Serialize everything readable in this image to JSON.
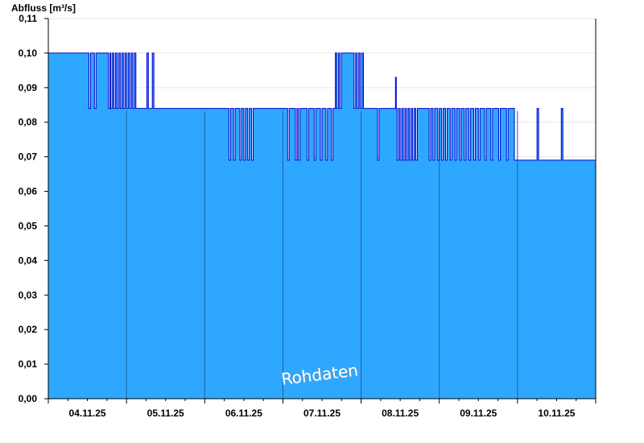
{
  "chart_data": {
    "type": "area",
    "title": "",
    "ylabel": "Abfluss [m³/s]",
    "xlabel": "",
    "ylim": [
      0,
      0.11
    ],
    "y_ticks": [
      "0,00",
      "0,01",
      "0,02",
      "0,03",
      "0,04",
      "0,05",
      "0,06",
      "0,07",
      "0,08",
      "0,09",
      "0,10",
      "0,11"
    ],
    "x_tick_labels": [
      "04.11.25",
      "05.11.25",
      "06.11.25",
      "07.11.25",
      "08.11.25",
      "09.11.25",
      "10.11.25"
    ],
    "x_range_days": [
      0,
      7
    ],
    "watermark": "Rohdaten",
    "grid": true,
    "colors": {
      "fill": "#2ea8ff",
      "line": "#0000cc",
      "day_lines": "#1f5fa0",
      "grid": "#e6e6e6"
    },
    "series": [
      {
        "points": [
          [
            0.0,
            0.1
          ],
          [
            0.52,
            0.1
          ],
          [
            0.52,
            0.084
          ],
          [
            0.54,
            0.1
          ],
          [
            0.58,
            0.1
          ],
          [
            0.59,
            0.084
          ],
          [
            0.61,
            0.1
          ],
          [
            0.76,
            0.1
          ],
          [
            0.77,
            0.084
          ],
          [
            0.79,
            0.1
          ],
          [
            0.8,
            0.084
          ],
          [
            0.82,
            0.1
          ],
          [
            0.84,
            0.084
          ],
          [
            0.86,
            0.1
          ],
          [
            0.88,
            0.084
          ],
          [
            0.9,
            0.1
          ],
          [
            0.92,
            0.084
          ],
          [
            0.94,
            0.1
          ],
          [
            0.96,
            0.084
          ],
          [
            0.98,
            0.1
          ],
          [
            1.0,
            0.084
          ],
          [
            1.02,
            0.1
          ],
          [
            1.04,
            0.084
          ],
          [
            1.06,
            0.1
          ],
          [
            1.08,
            0.084
          ],
          [
            1.1,
            0.1
          ],
          [
            1.12,
            0.084
          ],
          [
            1.25,
            0.084
          ],
          [
            1.26,
            0.1
          ],
          [
            1.28,
            0.084
          ],
          [
            1.32,
            0.084
          ],
          [
            1.33,
            0.1
          ],
          [
            1.35,
            0.084
          ],
          [
            2.3,
            0.084
          ],
          [
            2.31,
            0.069
          ],
          [
            2.33,
            0.084
          ],
          [
            2.36,
            0.084
          ],
          [
            2.37,
            0.069
          ],
          [
            2.39,
            0.084
          ],
          [
            2.44,
            0.084
          ],
          [
            2.45,
            0.069
          ],
          [
            2.47,
            0.084
          ],
          [
            2.5,
            0.069
          ],
          [
            2.52,
            0.084
          ],
          [
            2.55,
            0.069
          ],
          [
            2.57,
            0.084
          ],
          [
            2.6,
            0.069
          ],
          [
            2.62,
            0.084
          ],
          [
            3.05,
            0.084
          ],
          [
            3.06,
            0.069
          ],
          [
            3.08,
            0.084
          ],
          [
            3.15,
            0.084
          ],
          [
            3.16,
            0.069
          ],
          [
            3.18,
            0.084
          ],
          [
            3.2,
            0.069
          ],
          [
            3.22,
            0.084
          ],
          [
            3.3,
            0.084
          ],
          [
            3.31,
            0.069
          ],
          [
            3.33,
            0.084
          ],
          [
            3.4,
            0.069
          ],
          [
            3.42,
            0.084
          ],
          [
            3.48,
            0.069
          ],
          [
            3.5,
            0.084
          ],
          [
            3.55,
            0.069
          ],
          [
            3.57,
            0.084
          ],
          [
            3.62,
            0.069
          ],
          [
            3.64,
            0.084
          ],
          [
            3.66,
            0.084
          ],
          [
            3.67,
            0.1
          ],
          [
            3.69,
            0.084
          ],
          [
            3.71,
            0.1
          ],
          [
            3.73,
            0.084
          ],
          [
            3.75,
            0.1
          ],
          [
            3.9,
            0.1
          ],
          [
            3.91,
            0.084
          ],
          [
            3.93,
            0.1
          ],
          [
            3.95,
            0.084
          ],
          [
            3.97,
            0.1
          ],
          [
            3.99,
            0.084
          ],
          [
            4.01,
            0.1
          ],
          [
            4.03,
            0.084
          ],
          [
            4.2,
            0.084
          ],
          [
            4.21,
            0.069
          ],
          [
            4.23,
            0.084
          ],
          [
            4.43,
            0.084
          ],
          [
            4.44,
            0.093
          ],
          [
            4.45,
            0.084
          ],
          [
            4.46,
            0.069
          ],
          [
            4.48,
            0.084
          ],
          [
            4.5,
            0.069
          ],
          [
            4.52,
            0.084
          ],
          [
            4.54,
            0.069
          ],
          [
            4.56,
            0.084
          ],
          [
            4.58,
            0.069
          ],
          [
            4.6,
            0.084
          ],
          [
            4.62,
            0.069
          ],
          [
            4.64,
            0.084
          ],
          [
            4.66,
            0.069
          ],
          [
            4.68,
            0.084
          ],
          [
            4.7,
            0.069
          ],
          [
            4.72,
            0.084
          ],
          [
            4.86,
            0.084
          ],
          [
            4.87,
            0.069
          ],
          [
            4.89,
            0.084
          ],
          [
            4.92,
            0.069
          ],
          [
            4.94,
            0.084
          ],
          [
            4.98,
            0.069
          ],
          [
            5.0,
            0.084
          ],
          [
            5.03,
            0.069
          ],
          [
            5.05,
            0.084
          ],
          [
            5.08,
            0.069
          ],
          [
            5.1,
            0.084
          ],
          [
            5.14,
            0.069
          ],
          [
            5.16,
            0.084
          ],
          [
            5.2,
            0.069
          ],
          [
            5.22,
            0.084
          ],
          [
            5.26,
            0.069
          ],
          [
            5.28,
            0.084
          ],
          [
            5.32,
            0.069
          ],
          [
            5.34,
            0.084
          ],
          [
            5.38,
            0.069
          ],
          [
            5.4,
            0.084
          ],
          [
            5.44,
            0.069
          ],
          [
            5.46,
            0.084
          ],
          [
            5.5,
            0.069
          ],
          [
            5.52,
            0.084
          ],
          [
            5.58,
            0.069
          ],
          [
            5.6,
            0.084
          ],
          [
            5.66,
            0.069
          ],
          [
            5.68,
            0.084
          ],
          [
            5.76,
            0.069
          ],
          [
            5.78,
            0.084
          ],
          [
            5.86,
            0.069
          ],
          [
            5.88,
            0.084
          ],
          [
            5.96,
            0.069
          ],
          [
            6.24,
            0.069
          ],
          [
            6.25,
            0.084
          ],
          [
            6.27,
            0.069
          ],
          [
            6.55,
            0.069
          ],
          [
            6.56,
            0.084
          ],
          [
            6.58,
            0.069
          ],
          [
            7.0,
            0.069
          ]
        ]
      }
    ]
  }
}
